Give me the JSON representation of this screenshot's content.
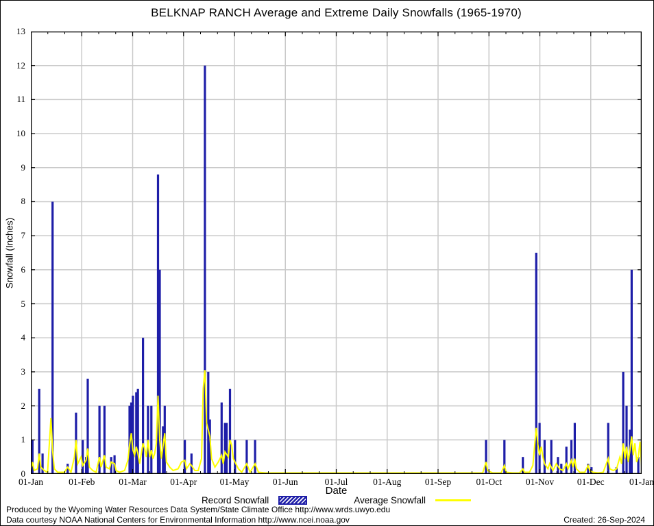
{
  "title": "BELKNAP RANCH Average and Extreme Daily Snowfalls (1965-1970)",
  "legend": {
    "record_label": "Record Snowfall",
    "average_label": "Average Snowfall"
  },
  "footer": {
    "line1": "Produced by the Wyoming Water Resources Data System/State Climate Office http://www.wrds.uwyo.edu",
    "line2": "Data courtesy NOAA National Centers for Environmental Information http://www.ncei.noaa.gov",
    "created": "Created: 26-Sep-2024"
  },
  "chart_data": {
    "type": "bar",
    "title": "BELKNAP RANCH Average and Extreme Daily Snowfalls (1965-1970)",
    "xlabel": "Date",
    "ylabel": "Snowfall (Inches)",
    "ylim": [
      0,
      13
    ],
    "y_ticks": [
      0,
      1,
      2,
      3,
      4,
      5,
      6,
      7,
      8,
      9,
      10,
      11,
      12,
      13
    ],
    "x_tick_labels": [
      "01-Jan",
      "01-Feb",
      "01-Mar",
      "01-Apr",
      "01-May",
      "01-Jun",
      "01-Jul",
      "01-Aug",
      "01-Sep",
      "01-Oct",
      "01-Nov",
      "01-Dec",
      "01-Jan"
    ],
    "x_days_per_year": 365,
    "grid": true,
    "legend_position": "bottom",
    "colors": {
      "record": "#1e1ea8",
      "average": "#ffff00",
      "grid": "#c9c9c9",
      "axis": "#000000"
    },
    "series_names": [
      "Record Snowfall",
      "Average Snowfall"
    ],
    "record_snowfall_bars": [
      [
        1,
        1.0
      ],
      [
        5,
        2.5
      ],
      [
        7,
        0.6
      ],
      [
        13,
        8.0
      ],
      [
        22,
        0.3
      ],
      [
        27,
        1.8
      ],
      [
        31,
        1.0
      ],
      [
        33,
        0.5
      ],
      [
        34,
        2.8
      ],
      [
        41,
        2.0
      ],
      [
        44,
        2.0
      ],
      [
        48,
        0.5
      ],
      [
        50,
        0.55
      ],
      [
        59,
        2.0
      ],
      [
        60,
        2.1
      ],
      [
        61,
        2.3
      ],
      [
        63,
        2.4
      ],
      [
        64,
        2.5
      ],
      [
        67,
        4.0
      ],
      [
        70,
        2.0
      ],
      [
        72,
        2.0
      ],
      [
        76,
        8.8
      ],
      [
        77,
        6.0
      ],
      [
        79,
        1.4
      ],
      [
        80,
        2.0
      ],
      [
        92,
        1.0
      ],
      [
        96,
        0.6
      ],
      [
        104,
        12.0
      ],
      [
        106,
        3.0
      ],
      [
        107,
        1.6
      ],
      [
        114,
        2.1
      ],
      [
        116,
        1.5
      ],
      [
        117,
        1.5
      ],
      [
        119,
        2.5
      ],
      [
        122,
        1.0
      ],
      [
        129,
        1.0
      ],
      [
        134,
        1.0
      ],
      [
        272,
        1.0
      ],
      [
        283,
        1.0
      ],
      [
        294,
        0.5
      ],
      [
        302,
        6.5
      ],
      [
        304,
        1.5
      ],
      [
        307,
        1.0
      ],
      [
        311,
        1.0
      ],
      [
        315,
        0.5
      ],
      [
        317,
        0.3
      ],
      [
        320,
        0.8
      ],
      [
        323,
        1.0
      ],
      [
        325,
        1.5
      ],
      [
        333,
        0.3
      ],
      [
        335,
        0.2
      ],
      [
        345,
        1.5
      ],
      [
        350,
        0.2
      ],
      [
        354,
        3.0
      ],
      [
        356,
        2.0
      ],
      [
        358,
        1.3
      ],
      [
        359,
        6.0
      ],
      [
        363,
        0.5
      ]
    ],
    "average_snowfall_line": [
      [
        0,
        0.1
      ],
      [
        1,
        0.35
      ],
      [
        2,
        0.1
      ],
      [
        4,
        0.15
      ],
      [
        5,
        0.6
      ],
      [
        6,
        0.2
      ],
      [
        8,
        0.1
      ],
      [
        10,
        0.05
      ],
      [
        12,
        1.65
      ],
      [
        13,
        0.7
      ],
      [
        14,
        0.15
      ],
      [
        16,
        0.05
      ],
      [
        20,
        0.05
      ],
      [
        22,
        0.2
      ],
      [
        24,
        0.05
      ],
      [
        26,
        0.5
      ],
      [
        27,
        1.0
      ],
      [
        28,
        0.3
      ],
      [
        30,
        0.5
      ],
      [
        31,
        0.25
      ],
      [
        33,
        0.4
      ],
      [
        34,
        0.75
      ],
      [
        35,
        0.2
      ],
      [
        37,
        0.1
      ],
      [
        39,
        0.05
      ],
      [
        41,
        0.5
      ],
      [
        42,
        0.2
      ],
      [
        44,
        0.55
      ],
      [
        45,
        0.2
      ],
      [
        47,
        0.15
      ],
      [
        48,
        0.35
      ],
      [
        50,
        0.3
      ],
      [
        51,
        0.1
      ],
      [
        53,
        0.05
      ],
      [
        56,
        0.1
      ],
      [
        58,
        0.4
      ],
      [
        59,
        0.85
      ],
      [
        60,
        1.2
      ],
      [
        61,
        0.7
      ],
      [
        62,
        0.55
      ],
      [
        63,
        0.8
      ],
      [
        64,
        0.6
      ],
      [
        65,
        0.3
      ],
      [
        67,
        0.9
      ],
      [
        68,
        0.75
      ],
      [
        69,
        0.5
      ],
      [
        70,
        1.0
      ],
      [
        71,
        0.5
      ],
      [
        72,
        0.7
      ],
      [
        73,
        0.45
      ],
      [
        74,
        0.6
      ],
      [
        75,
        0.9
      ],
      [
        76,
        2.3
      ],
      [
        77,
        1.0
      ],
      [
        78,
        0.45
      ],
      [
        80,
        1.2
      ],
      [
        81,
        0.35
      ],
      [
        83,
        0.2
      ],
      [
        85,
        0.1
      ],
      [
        88,
        0.15
      ],
      [
        90,
        0.35
      ],
      [
        92,
        0.4
      ],
      [
        93,
        0.15
      ],
      [
        95,
        0.3
      ],
      [
        96,
        0.25
      ],
      [
        98,
        0.1
      ],
      [
        100,
        0.1
      ],
      [
        102,
        0.45
      ],
      [
        103,
        2.5
      ],
      [
        104,
        3.05
      ],
      [
        105,
        1.5
      ],
      [
        106,
        1.3
      ],
      [
        107,
        1.1
      ],
      [
        108,
        0.45
      ],
      [
        110,
        0.2
      ],
      [
        112,
        0.35
      ],
      [
        114,
        0.55
      ],
      [
        115,
        0.3
      ],
      [
        116,
        0.65
      ],
      [
        118,
        0.5
      ],
      [
        119,
        1.0
      ],
      [
        120,
        0.85
      ],
      [
        121,
        0.45
      ],
      [
        122,
        0.35
      ],
      [
        124,
        0.15
      ],
      [
        126,
        0.05
      ],
      [
        129,
        0.3
      ],
      [
        131,
        0.05
      ],
      [
        134,
        0.3
      ],
      [
        136,
        0.05
      ],
      [
        140,
        0.02
      ],
      [
        145,
        0
      ],
      [
        200,
        0
      ],
      [
        265,
        0
      ],
      [
        270,
        0.02
      ],
      [
        272,
        0.35
      ],
      [
        273,
        0.1
      ],
      [
        276,
        0.02
      ],
      [
        281,
        0.02
      ],
      [
        283,
        0.25
      ],
      [
        284,
        0.05
      ],
      [
        288,
        0.02
      ],
      [
        292,
        0.02
      ],
      [
        294,
        0.15
      ],
      [
        295,
        0.05
      ],
      [
        298,
        0.05
      ],
      [
        300,
        0.25
      ],
      [
        302,
        1.35
      ],
      [
        303,
        0.85
      ],
      [
        304,
        0.55
      ],
      [
        305,
        0.8
      ],
      [
        306,
        0.5
      ],
      [
        307,
        0.3
      ],
      [
        309,
        0.15
      ],
      [
        310,
        0.3
      ],
      [
        312,
        0.1
      ],
      [
        314,
        0.3
      ],
      [
        316,
        0.15
      ],
      [
        318,
        0.1
      ],
      [
        320,
        0.3
      ],
      [
        321,
        0.15
      ],
      [
        323,
        0.4
      ],
      [
        324,
        0.2
      ],
      [
        325,
        0.45
      ],
      [
        326,
        0.15
      ],
      [
        328,
        0.05
      ],
      [
        331,
        0.05
      ],
      [
        333,
        0.25
      ],
      [
        334,
        0.1
      ],
      [
        336,
        0.05
      ],
      [
        339,
        0.02
      ],
      [
        342,
        0.05
      ],
      [
        345,
        0.45
      ],
      [
        346,
        0.15
      ],
      [
        348,
        0.1
      ],
      [
        350,
        0.15
      ],
      [
        352,
        0.5
      ],
      [
        353,
        0.3
      ],
      [
        354,
        0.9
      ],
      [
        355,
        0.45
      ],
      [
        356,
        0.8
      ],
      [
        357,
        0.35
      ],
      [
        358,
        0.7
      ],
      [
        359,
        1.1
      ],
      [
        360,
        0.55
      ],
      [
        361,
        0.9
      ],
      [
        362,
        0.35
      ],
      [
        363,
        0.5
      ],
      [
        364,
        0.95
      ],
      [
        365,
        0.2
      ]
    ]
  }
}
